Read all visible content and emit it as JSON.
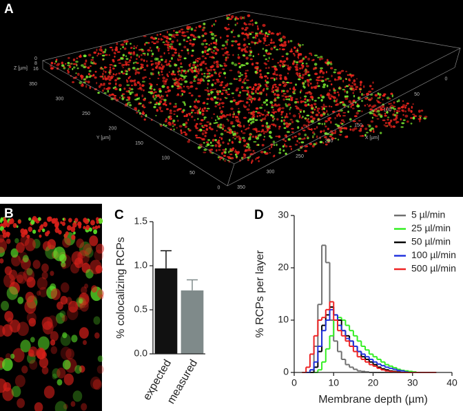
{
  "image_panels": {
    "a": {
      "panel_label": "A",
      "z_label": "Z [µm]",
      "z_ticks": [
        "0",
        "8",
        "16"
      ],
      "y_label": "Y [µm]",
      "y_ticks": [
        "350",
        "300",
        "250",
        "200",
        "150",
        "100",
        "50",
        "0"
      ],
      "x_label": "X [µm]",
      "x_ticks": [
        "350",
        "300",
        "250",
        "200",
        "150",
        "100",
        "50",
        "0"
      ]
    },
    "b": {
      "panel_label": "B"
    }
  },
  "chart_data": [
    {
      "type": "bar",
      "panel_label": "C",
      "y_label": "% colocalizing RCPs",
      "categories": [
        "expected",
        "measured"
      ],
      "values": [
        0.97,
        0.72
      ],
      "errors": [
        0.2,
        0.12
      ],
      "colors": [
        "#111111",
        "#7f8a8a"
      ],
      "ylim": [
        0,
        1.5
      ],
      "yticks": [
        {
          "value": 0,
          "label": "0.0"
        },
        {
          "value": 0.5,
          "label": "0.5"
        },
        {
          "value": 1,
          "label": "1.0"
        },
        {
          "value": 1.5,
          "label": "1.5"
        }
      ]
    },
    {
      "type": "histogram",
      "panel_label": "D",
      "x_label": "Membrane depth (µm)",
      "y_label": "% RCPs per layer",
      "xlim": [
        0,
        40
      ],
      "ylim": [
        0,
        30
      ],
      "xticks": [
        0,
        10,
        20,
        30,
        40
      ],
      "yticks": [
        0,
        10,
        20,
        30
      ],
      "legend": "top-right",
      "bins": [
        2,
        3,
        4,
        5,
        6,
        7,
        8,
        9,
        10,
        11,
        12,
        13,
        14,
        15,
        16,
        17,
        18,
        19,
        20,
        21,
        22,
        23,
        24,
        25,
        26,
        27,
        28,
        29,
        30,
        31,
        32,
        33,
        34,
        35,
        36
      ],
      "series": [
        {
          "name": "5 µl/min",
          "color": "#707070",
          "values": [
            0,
            0,
            0.5,
            5,
            13,
            24.3,
            21,
            10,
            6,
            4,
            2.5,
            1.5,
            1,
            0.6,
            0.3,
            0.2,
            0.1,
            0,
            0,
            0,
            0,
            0,
            0,
            0,
            0,
            0,
            0,
            0,
            0,
            0,
            0,
            0,
            0,
            0
          ]
        },
        {
          "name": "25 µl/min",
          "color": "#33ee22",
          "values": [
            0,
            0,
            0,
            0,
            0.5,
            2,
            4.5,
            7,
            10,
            10.5,
            10,
            9,
            8,
            7,
            6,
            5,
            4.3,
            3.5,
            3,
            2.5,
            2,
            1.5,
            1.2,
            0.9,
            0.6,
            0.4,
            0.3,
            0.2,
            0.1,
            0,
            0,
            0,
            0,
            0
          ]
        },
        {
          "name": "50 µl/min",
          "color": "#000000",
          "values": [
            0,
            0,
            0,
            1,
            4,
            9,
            11,
            12.5,
            11,
            10,
            8,
            7,
            6,
            5,
            4,
            3,
            2.5,
            2,
            1.5,
            1,
            0.7,
            0.5,
            0.3,
            0.2,
            0.1,
            0,
            0,
            0,
            0,
            0,
            0,
            0,
            0,
            0
          ]
        },
        {
          "name": "100 µl/min",
          "color": "#2233dd",
          "values": [
            0,
            0,
            0.5,
            2,
            5,
            8,
            10,
            12,
            11,
            9,
            8,
            6.5,
            6,
            5,
            4,
            3.5,
            3,
            2.5,
            2,
            1.6,
            1.3,
            1,
            0.8,
            0.6,
            0.4,
            0.3,
            0.1,
            0,
            0,
            0,
            0,
            0,
            0,
            0
          ]
        },
        {
          "name": "500 µl/min",
          "color": "#ee2222",
          "values": [
            0,
            1,
            3.5,
            7,
            10,
            10.5,
            12,
            13.5,
            10,
            8,
            7,
            6,
            5,
            4,
            3,
            2.5,
            2,
            1.5,
            1.2,
            0.8,
            0.5,
            0.3,
            0.2,
            0.1,
            0,
            0,
            0,
            0,
            0,
            0,
            0,
            0,
            0,
            0
          ]
        }
      ]
    }
  ]
}
